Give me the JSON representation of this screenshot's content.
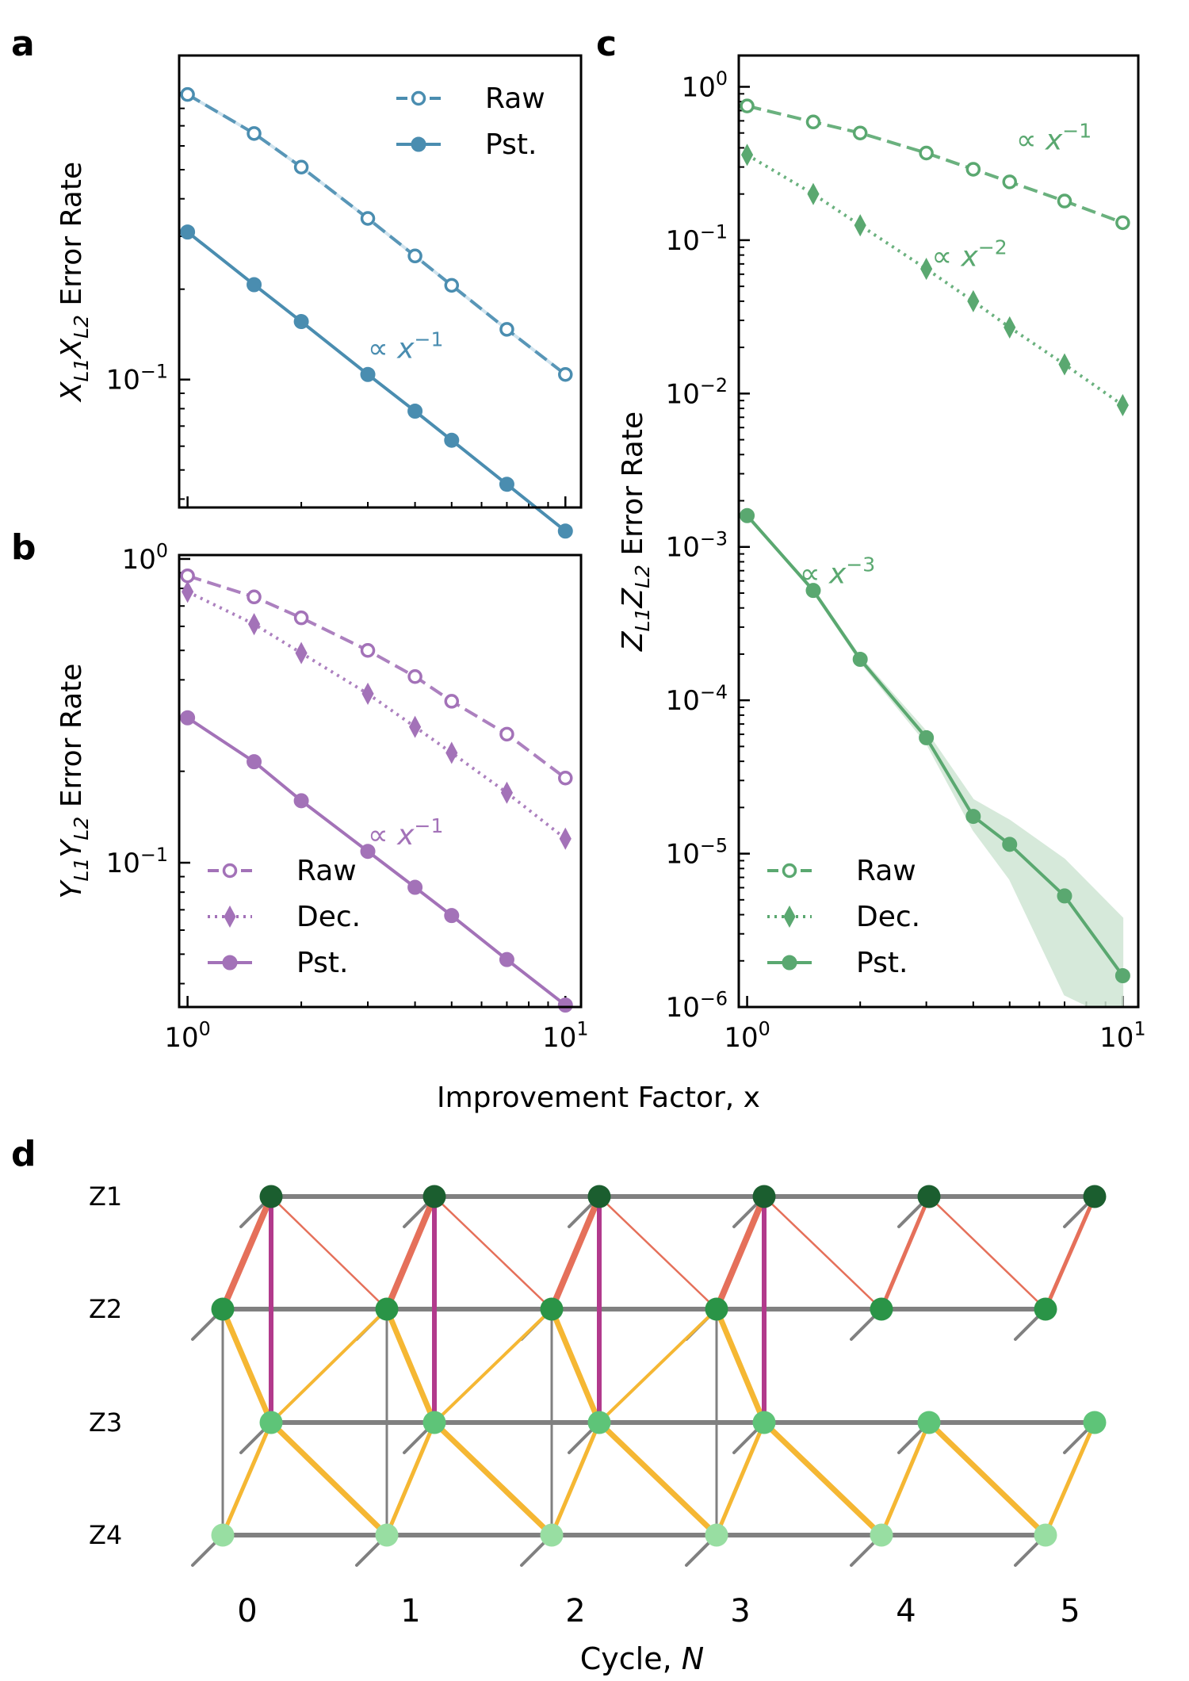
{
  "colors": {
    "blue": "#4a8db0",
    "blue_light": "#cfe3ee",
    "purple": "#a372b8",
    "green": "#5aa870",
    "green_band": "#cfe6d4",
    "gray": "#808080",
    "salmon": "#e5705a",
    "magenta": "#b23a8c",
    "yellow": "#f5b733",
    "z1": "#1b5e2f",
    "z2": "#2a9447",
    "z3": "#5ec478",
    "z4": "#98dea2"
  },
  "panel_labels": {
    "a": "a",
    "b": "b",
    "c": "c",
    "d": "d"
  },
  "shared_xlabel": "Improvement Factor, x",
  "chart_data": [
    {
      "id": "a",
      "type": "line",
      "xscale": "log",
      "yscale": "log",
      "title": "",
      "xlabel": "",
      "ylabel": {
        "pre": "X",
        "s1": "L1",
        "mid": "X",
        "s2": "L2",
        "post": " Error Rate"
      },
      "xlim": [
        0.95,
        11
      ],
      "ylim": [
        0.0375,
        1.2
      ],
      "yticks": [
        {
          "value": 0.1,
          "base": "10",
          "exp": "−1"
        }
      ],
      "xticks": [],
      "x": [
        1,
        1.5,
        2,
        3,
        4,
        5,
        7,
        10
      ],
      "series": [
        {
          "name": "Raw",
          "style": "dashed",
          "marker": "open-circle",
          "color": "blue",
          "values": [
            0.89,
            0.66,
            0.51,
            0.344,
            0.258,
            0.206,
            0.147,
            0.104
          ]
        },
        {
          "name": "Pst.",
          "style": "solid",
          "marker": "circle",
          "color": "blue",
          "values": [
            0.31,
            0.207,
            0.156,
            0.104,
            0.0785,
            0.0628,
            0.0448,
            0.0313
          ]
        }
      ],
      "legend": {
        "position": "top-right",
        "entries": [
          "Raw",
          "Pst."
        ]
      },
      "annotations": [
        {
          "text": "∝ x",
          "exp": "−1",
          "x": 3.0,
          "y": 0.118,
          "color": "blue"
        }
      ]
    },
    {
      "id": "b",
      "type": "line",
      "xscale": "log",
      "yscale": "log",
      "title": "",
      "xlabel": "",
      "ylabel": {
        "pre": "Y",
        "s1": "L1",
        "mid": "Y",
        "s2": "L2",
        "post": " Error Rate"
      },
      "xlim": [
        0.95,
        11
      ],
      "ylim": [
        0.0335,
        1.03
      ],
      "yticks": [
        {
          "value": 1,
          "base": "10",
          "exp": "0"
        },
        {
          "value": 0.1,
          "base": "10",
          "exp": "−1"
        }
      ],
      "xticks": [
        {
          "value": 1,
          "base": "10",
          "exp": "0"
        },
        {
          "value": 10,
          "base": "10",
          "exp": "1"
        }
      ],
      "x": [
        1,
        1.5,
        2,
        3,
        4,
        5,
        7,
        10
      ],
      "series": [
        {
          "name": "Raw",
          "style": "dashed",
          "marker": "open-circle",
          "color": "purple",
          "values": [
            0.88,
            0.75,
            0.64,
            0.5,
            0.41,
            0.34,
            0.265,
            0.19
          ]
        },
        {
          "name": "Dec.",
          "style": "dotted",
          "marker": "diamond",
          "color": "purple",
          "values": [
            0.78,
            0.61,
            0.49,
            0.36,
            0.28,
            0.23,
            0.17,
            0.12
          ]
        },
        {
          "name": "Pst.",
          "style": "solid",
          "marker": "circle",
          "color": "purple",
          "values": [
            0.3,
            0.215,
            0.16,
            0.109,
            0.083,
            0.067,
            0.048,
            0.034
          ]
        }
      ],
      "legend": {
        "position": "bottom-left",
        "entries": [
          "Raw",
          "Dec.",
          "Pst."
        ]
      },
      "annotations": [
        {
          "text": "∝ x",
          "exp": "−1",
          "x": 3.0,
          "y": 0.115,
          "color": "purple"
        }
      ]
    },
    {
      "id": "c",
      "type": "line",
      "xscale": "log",
      "yscale": "log",
      "title": "",
      "xlabel": "",
      "ylabel": {
        "pre": "Z",
        "s1": "L1",
        "mid": "Z",
        "s2": "L2",
        "post": " Error Rate"
      },
      "xlim": [
        0.95,
        11
      ],
      "ylim": [
        1e-06,
        1.6
      ],
      "yticks": [
        {
          "value": 1,
          "base": "10",
          "exp": "0"
        },
        {
          "value": 0.1,
          "base": "10",
          "exp": "−1"
        },
        {
          "value": 0.01,
          "base": "10",
          "exp": "−2"
        },
        {
          "value": 0.001,
          "base": "10",
          "exp": "−3"
        },
        {
          "value": 0.0001,
          "base": "10",
          "exp": "−4"
        },
        {
          "value": 1e-05,
          "base": "10",
          "exp": "−5"
        },
        {
          "value": 1e-06,
          "base": "10",
          "exp": "−6"
        }
      ],
      "xticks": [
        {
          "value": 1,
          "base": "10",
          "exp": "0"
        },
        {
          "value": 10,
          "base": "10",
          "exp": "1"
        }
      ],
      "x": [
        1,
        1.5,
        2,
        3,
        4,
        5,
        7,
        10
      ],
      "series": [
        {
          "name": "Raw",
          "style": "dashed",
          "marker": "open-circle",
          "color": "green",
          "values": [
            0.75,
            0.59,
            0.5,
            0.37,
            0.29,
            0.24,
            0.18,
            0.13
          ]
        },
        {
          "name": "Dec.",
          "style": "dotted",
          "marker": "diamond",
          "color": "green",
          "values": [
            0.36,
            0.2,
            0.125,
            0.065,
            0.04,
            0.027,
            0.0155,
            0.0084
          ]
        },
        {
          "name": "Pst.",
          "style": "solid",
          "marker": "circle",
          "color": "green",
          "values": [
            0.0016,
            0.00052,
            0.000185,
            5.7e-05,
            1.75e-05,
            1.15e-05,
            5.3e-06,
            1.6e-06
          ],
          "band_low": [
            0.00158,
            0.000505,
            0.000178,
            5.25e-05,
            1.42e-05,
            6.8e-06,
            1.2e-06,
            0.0
          ],
          "band_high": [
            0.00162,
            0.000535,
            0.000192,
            6.25e-05,
            2.25e-05,
            1.65e-05,
            9.2e-06,
            3.8e-06
          ]
        }
      ],
      "legend": {
        "position": "bottom-left",
        "entries": [
          "Raw",
          "Dec.",
          "Pst."
        ]
      },
      "annotations": [
        {
          "text": "∝ x",
          "exp": "−1",
          "x": 5.2,
          "y": 0.39,
          "color": "green"
        },
        {
          "text": "∝ x",
          "exp": "−2",
          "x": 3.1,
          "y": 0.068,
          "color": "green"
        },
        {
          "text": "∝ x",
          "exp": "−3",
          "x": 1.38,
          "y": 0.00058,
          "color": "green"
        }
      ]
    },
    {
      "id": "d",
      "type": "diagram",
      "rows": [
        "Z1",
        "Z2",
        "Z3",
        "Z4"
      ],
      "cycles": [
        "0",
        "1",
        "2",
        "3",
        "4",
        "5"
      ],
      "xlabel": {
        "text": "Cycle, ",
        "var": "N"
      },
      "notes": "Detector graph: nodes per cycle for each stabilizer row, gray timelike edges, salmon/yellow spacelike edges, magenta Z1–Z3 hyperedges."
    }
  ]
}
